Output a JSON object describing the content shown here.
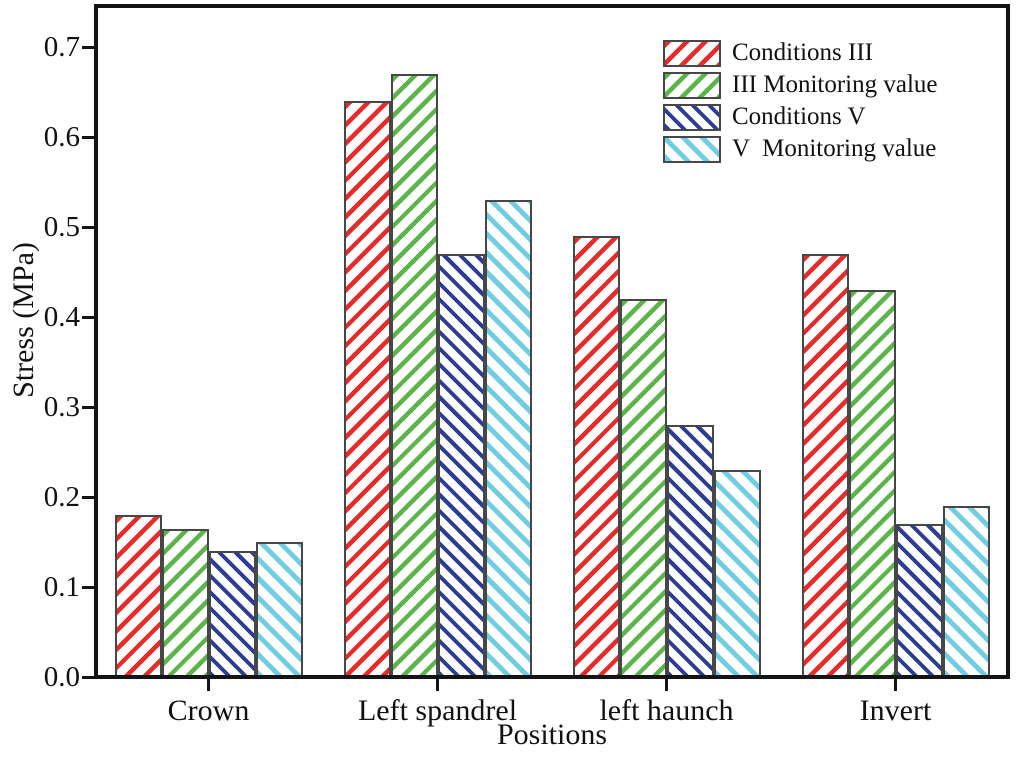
{
  "chart_data": {
    "type": "bar",
    "title": "",
    "xlabel": "Positions",
    "ylabel": "Stress (MPa)",
    "ylim": [
      0,
      0.74
    ],
    "yticks": [
      0.0,
      0.1,
      0.2,
      0.3,
      0.4,
      0.5,
      0.6,
      0.7
    ],
    "ytick_labels": [
      "0.0",
      "0.1",
      "0.2",
      "0.3",
      "0.4",
      "0.5",
      "0.6",
      "0.7"
    ],
    "categories": [
      "Crown",
      "Left spandrel",
      "left haunch",
      "Invert"
    ],
    "series": [
      {
        "name": "Conditions III",
        "color": "#e62b2b",
        "hatch": "/",
        "values": [
          0.18,
          0.64,
          0.49,
          0.47
        ]
      },
      {
        "name": "III Monitoring value",
        "color": "#5cb44a",
        "hatch": "/",
        "values": [
          0.165,
          0.67,
          0.42,
          0.43
        ]
      },
      {
        "name": "Conditions V",
        "color": "#2c3d93",
        "hatch": "\\",
        "values": [
          0.14,
          0.47,
          0.28,
          0.17
        ]
      },
      {
        "name": "V  Monitoring value",
        "color": "#70cde2",
        "hatch": "\\",
        "values": [
          0.15,
          0.53,
          0.23,
          0.19
        ]
      }
    ],
    "legend_position": "top-right",
    "grid": false,
    "axis_color": "#141414",
    "bar_border_color": "#474747"
  }
}
